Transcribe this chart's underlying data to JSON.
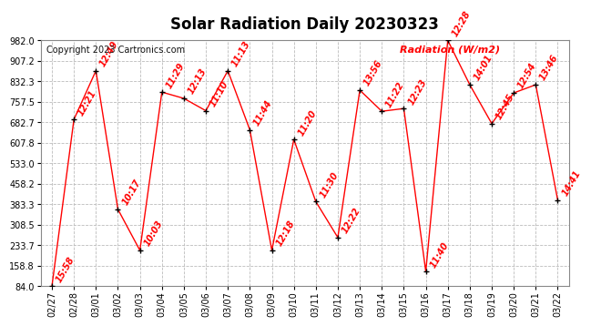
{
  "title": "Solar Radiation Daily 20230323",
  "copyright": "Copyright 2023 Cartronics.com",
  "legend_label": "Radiation (W/m2)",
  "background_color": "#ffffff",
  "grid_color": "#bbbbbb",
  "line_color": "#ff0000",
  "marker_color": "#000000",
  "label_color": "#ff0000",
  "ylim": [
    84.0,
    982.0
  ],
  "yticks": [
    84.0,
    158.8,
    233.7,
    308.5,
    383.3,
    458.2,
    533.0,
    607.8,
    682.7,
    757.5,
    832.3,
    907.2,
    982.0
  ],
  "dates": [
    "02/27",
    "02/28",
    "03/01",
    "03/02",
    "03/03",
    "03/04",
    "03/05",
    "03/06",
    "03/07",
    "03/08",
    "03/09",
    "03/10",
    "03/11",
    "03/12",
    "03/13",
    "03/14",
    "03/15",
    "03/16",
    "03/17",
    "03/18",
    "03/19",
    "03/20",
    "03/21",
    "03/22"
  ],
  "values": [
    84.0,
    693.0,
    871.0,
    365.0,
    215.0,
    793.0,
    770.0,
    725.0,
    871.0,
    655.0,
    215.0,
    620.0,
    393.0,
    262.0,
    800.0,
    723.0,
    733.0,
    138.0,
    982.0,
    820.0,
    678.0,
    790.0,
    820.0,
    398.0
  ],
  "time_labels": [
    "15:58",
    "12:21",
    "12:49",
    "10:17",
    "10:03",
    "11:29",
    "12:13",
    "11:10",
    "11:13",
    "11:44",
    "12:18",
    "11:20",
    "11:30",
    "12:22",
    "13:56",
    "11:22",
    "12:23",
    "11:40",
    "12:28",
    "14:01",
    "12:45",
    "12:54",
    "13:46",
    "14:41"
  ],
  "title_fontsize": 12,
  "label_fontsize": 7,
  "tick_fontsize": 7,
  "copyright_fontsize": 7
}
